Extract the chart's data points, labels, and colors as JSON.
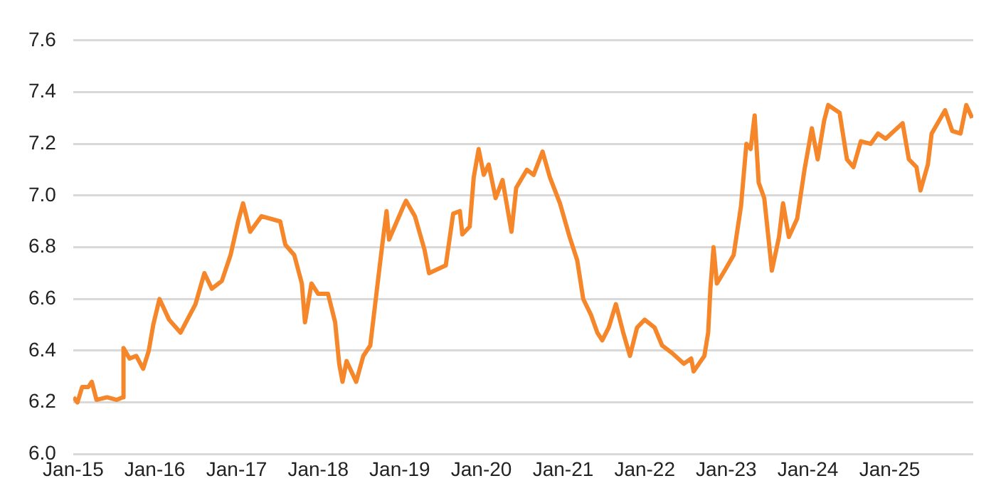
{
  "chart_data": {
    "type": "line",
    "xlim": [
      "2015-01-01",
      "2026-01-10"
    ],
    "xticks": [
      {
        "value": "2015-01-01",
        "label": "Jan-15"
      },
      {
        "value": "2016-01-01",
        "label": "Jan-16"
      },
      {
        "value": "2017-01-01",
        "label": "Jan-17"
      },
      {
        "value": "2018-01-01",
        "label": "Jan-18"
      },
      {
        "value": "2019-01-01",
        "label": "Jan-19"
      },
      {
        "value": "2020-01-01",
        "label": "Jan-20"
      },
      {
        "value": "2021-01-01",
        "label": "Jan-21"
      },
      {
        "value": "2022-01-01",
        "label": "Jan-22"
      },
      {
        "value": "2023-01-01",
        "label": "Jan-23"
      },
      {
        "value": "2024-01-01",
        "label": "Jan-24"
      },
      {
        "value": "2025-01-01",
        "label": "Jan-25"
      }
    ],
    "ylim": [
      6.0,
      7.6
    ],
    "yticks": [
      {
        "value": 6.0,
        "label": "6.0"
      },
      {
        "value": 6.2,
        "label": "6.2"
      },
      {
        "value": 6.4,
        "label": "6.4"
      },
      {
        "value": 6.6,
        "label": "6.6"
      },
      {
        "value": 6.8,
        "label": "6.8"
      },
      {
        "value": 7.0,
        "label": "7.0"
      },
      {
        "value": 7.2,
        "label": "7.2"
      },
      {
        "value": 7.4,
        "label": "7.4"
      },
      {
        "value": 7.6,
        "label": "7.6"
      }
    ],
    "grid": "y",
    "legend": false,
    "marker": "none",
    "line_style": "solid",
    "x": [
      "2015-01-02",
      "2015-01-20",
      "2015-02-10",
      "2015-03-10",
      "2015-03-25",
      "2015-04-15",
      "2015-06-01",
      "2015-07-15",
      "2015-08-10",
      "2015-08-14",
      "2015-09-10",
      "2015-10-10",
      "2015-11-10",
      "2015-12-05",
      "2015-12-25",
      "2016-01-22",
      "2016-03-05",
      "2016-04-25",
      "2016-07-01",
      "2016-08-10",
      "2016-09-12",
      "2016-10-27",
      "2016-12-05",
      "2017-01-08",
      "2017-01-30",
      "2017-03-03",
      "2017-04-22",
      "2017-07-15",
      "2017-08-07",
      "2017-09-16",
      "2017-10-20",
      "2017-11-03",
      "2017-12-02",
      "2018-01-01",
      "2018-02-14",
      "2018-03-18",
      "2018-04-05",
      "2018-04-20",
      "2018-05-08",
      "2018-06-20",
      "2018-07-22",
      "2018-08-22",
      "2018-09-24",
      "2018-10-15",
      "2018-11-03",
      "2018-11-14",
      "2019-01-18",
      "2019-01-29",
      "2019-03-10",
      "2019-04-22",
      "2019-05-12",
      "2019-07-26",
      "2019-08-28",
      "2019-09-27",
      "2019-10-08",
      "2019-11-10",
      "2019-11-28",
      "2019-12-20",
      "2020-01-12",
      "2020-02-03",
      "2020-03-05",
      "2020-04-05",
      "2020-05-15",
      "2020-06-05",
      "2020-07-23",
      "2020-08-22",
      "2020-10-01",
      "2020-11-03",
      "2020-12-18",
      "2021-01-30",
      "2021-03-05",
      "2021-04-01",
      "2021-05-05",
      "2021-06-03",
      "2021-06-25",
      "2021-07-24",
      "2021-08-25",
      "2021-09-27",
      "2021-10-27",
      "2021-11-28",
      "2022-01-01",
      "2022-02-14",
      "2022-03-20",
      "2022-05-05",
      "2022-06-25",
      "2022-07-28",
      "2022-08-08",
      "2022-09-25",
      "2022-10-12",
      "2022-10-22",
      "2022-11-05",
      "2022-11-20",
      "2022-12-25",
      "2023-02-03",
      "2023-03-08",
      "2023-04-01",
      "2023-04-20",
      "2023-05-08",
      "2023-05-26",
      "2023-06-20",
      "2023-07-24",
      "2023-08-25",
      "2023-09-12",
      "2023-10-08",
      "2023-11-14",
      "2023-12-17",
      "2024-01-19",
      "2024-02-14",
      "2024-03-14",
      "2024-04-01",
      "2024-05-22",
      "2024-06-24",
      "2024-07-23",
      "2024-08-25",
      "2024-10-08",
      "2024-11-10",
      "2024-12-14",
      "2025-02-28",
      "2025-03-28",
      "2025-05-01",
      "2025-05-19",
      "2025-06-21",
      "2025-07-08",
      "2025-09-06",
      "2025-10-08",
      "2025-11-14",
      "2025-12-10",
      "2026-01-05"
    ],
    "series": [
      {
        "color": "#f5862a",
        "values": [
          6.22,
          6.2,
          6.26,
          6.26,
          6.28,
          6.21,
          6.22,
          6.21,
          6.22,
          6.41,
          6.37,
          6.38,
          6.33,
          6.4,
          6.5,
          6.6,
          6.52,
          6.47,
          6.58,
          6.7,
          6.64,
          6.67,
          6.77,
          6.9,
          6.97,
          6.86,
          6.92,
          6.9,
          6.81,
          6.77,
          6.66,
          6.51,
          6.66,
          6.62,
          6.62,
          6.51,
          6.35,
          6.28,
          6.36,
          6.28,
          6.38,
          6.42,
          6.66,
          6.81,
          6.94,
          6.83,
          6.96,
          6.98,
          6.92,
          6.79,
          6.7,
          6.73,
          6.93,
          6.94,
          6.85,
          6.88,
          7.07,
          7.18,
          7.08,
          7.12,
          6.99,
          7.06,
          6.86,
          7.03,
          7.1,
          7.08,
          7.17,
          7.07,
          6.97,
          6.84,
          6.75,
          6.6,
          6.54,
          6.47,
          6.44,
          6.49,
          6.58,
          6.47,
          6.38,
          6.49,
          6.52,
          6.49,
          6.42,
          6.39,
          6.35,
          6.37,
          6.32,
          6.38,
          6.47,
          6.64,
          6.8,
          6.66,
          6.71,
          6.77,
          6.96,
          7.2,
          7.18,
          7.31,
          7.05,
          6.99,
          6.71,
          6.84,
          6.97,
          6.84,
          6.91,
          7.1,
          7.26,
          7.14,
          7.29,
          7.35,
          7.32,
          7.14,
          7.11,
          7.21,
          7.2,
          7.24,
          7.22,
          7.28,
          7.14,
          7.11,
          7.02,
          7.12,
          7.24,
          7.33,
          7.25,
          7.24,
          7.35,
          7.3
        ]
      }
    ]
  }
}
